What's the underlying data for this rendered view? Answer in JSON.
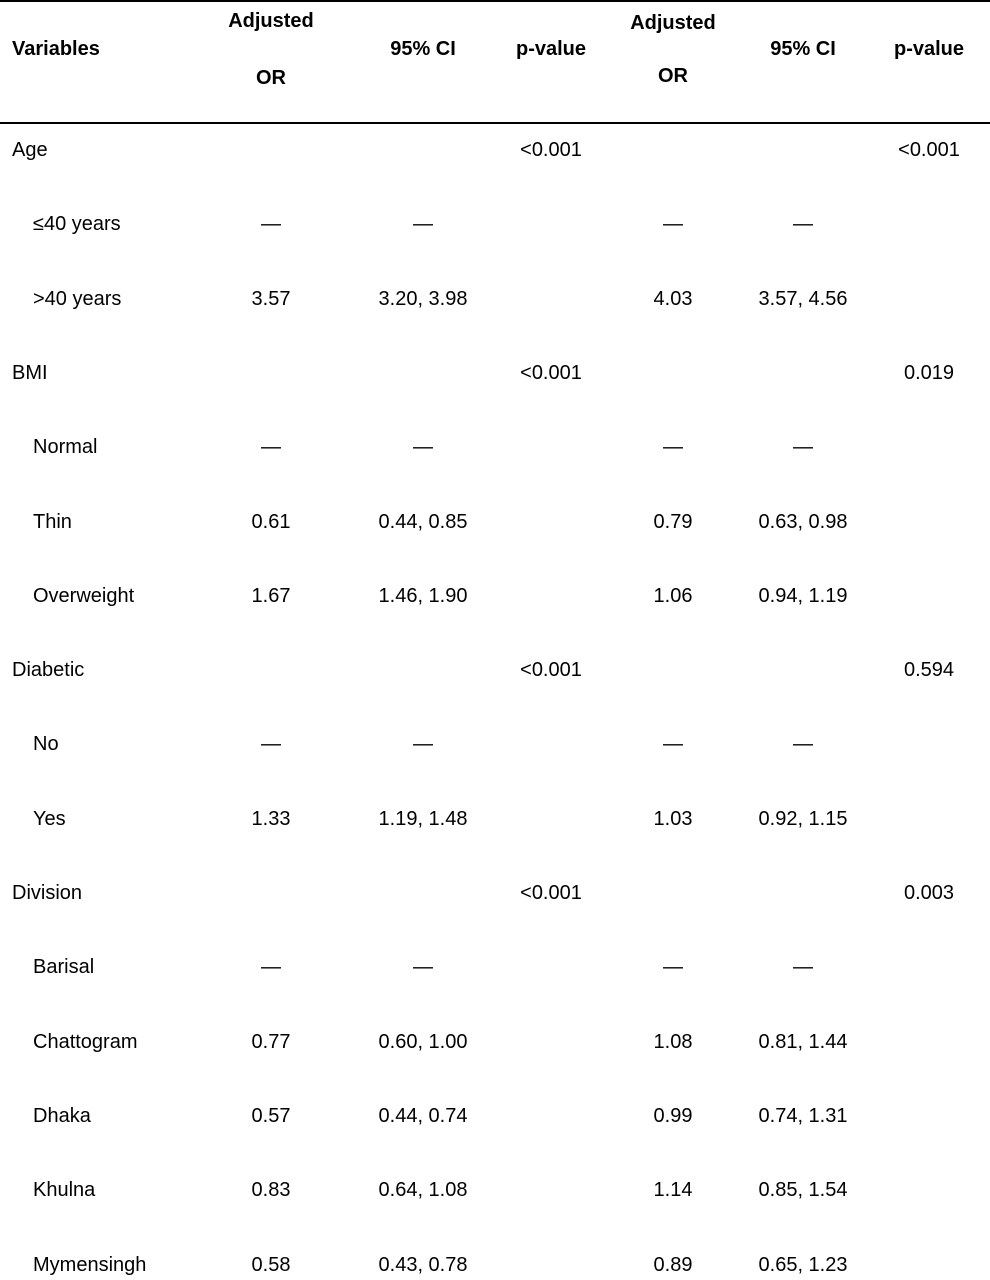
{
  "columns": [
    "Variables",
    "Adjusted OR",
    "95% CI",
    "p-value",
    "Adjusted OR",
    "95% CI",
    "p-value"
  ],
  "header": {
    "variables": "Variables",
    "or1_line1": "Adjusted",
    "or1_line2": "OR",
    "ci1": "95% CI",
    "p1": "p-value",
    "or2_line1": "Adjusted",
    "or2_line2": "OR",
    "ci2": "95% CI",
    "p2": "p-value"
  },
  "rows": [
    {
      "label": "Age",
      "indent": false,
      "or1": "",
      "ci1": "",
      "p1": "<0.001",
      "or2": "",
      "ci2": "",
      "p2": "<0.001"
    },
    {
      "label": "≤40 years",
      "indent": true,
      "or1": "—",
      "ci1": "—",
      "p1": "",
      "or2": "—",
      "ci2": "—",
      "p2": ""
    },
    {
      "label": ">40 years",
      "indent": true,
      "or1": "3.57",
      "ci1": "3.20, 3.98",
      "p1": "",
      "or2": "4.03",
      "ci2": "3.57, 4.56",
      "p2": ""
    },
    {
      "label": "BMI",
      "indent": false,
      "or1": "",
      "ci1": "",
      "p1": "<0.001",
      "or2": "",
      "ci2": "",
      "p2": "0.019"
    },
    {
      "label": "Normal",
      "indent": true,
      "or1": "—",
      "ci1": "—",
      "p1": "",
      "or2": "—",
      "ci2": "—",
      "p2": ""
    },
    {
      "label": "Thin",
      "indent": true,
      "or1": "0.61",
      "ci1": "0.44, 0.85",
      "p1": "",
      "or2": "0.79",
      "ci2": "0.63, 0.98",
      "p2": ""
    },
    {
      "label": "Overweight",
      "indent": true,
      "or1": "1.67",
      "ci1": "1.46, 1.90",
      "p1": "",
      "or2": "1.06",
      "ci2": "0.94, 1.19",
      "p2": ""
    },
    {
      "label": "Diabetic",
      "indent": false,
      "or1": "",
      "ci1": "",
      "p1": "<0.001",
      "or2": "",
      "ci2": "",
      "p2": "0.594"
    },
    {
      "label": "No",
      "indent": true,
      "or1": "—",
      "ci1": "—",
      "p1": "",
      "or2": "—",
      "ci2": "—",
      "p2": ""
    },
    {
      "label": "Yes",
      "indent": true,
      "or1": "1.33",
      "ci1": "1.19, 1.48",
      "p1": "",
      "or2": "1.03",
      "ci2": "0.92, 1.15",
      "p2": ""
    },
    {
      "label": "Division",
      "indent": false,
      "or1": "",
      "ci1": "",
      "p1": "<0.001",
      "or2": "",
      "ci2": "",
      "p2": "0.003"
    },
    {
      "label": "Barisal",
      "indent": true,
      "or1": "—",
      "ci1": "—",
      "p1": "",
      "or2": "—",
      "ci2": "—",
      "p2": ""
    },
    {
      "label": "Chattogram",
      "indent": true,
      "or1": "0.77",
      "ci1": "0.60, 1.00",
      "p1": "",
      "or2": "1.08",
      "ci2": "0.81, 1.44",
      "p2": ""
    },
    {
      "label": "Dhaka",
      "indent": true,
      "or1": "0.57",
      "ci1": "0.44, 0.74",
      "p1": "",
      "or2": "0.99",
      "ci2": "0.74, 1.31",
      "p2": ""
    },
    {
      "label": "Khulna",
      "indent": true,
      "or1": "0.83",
      "ci1": "0.64, 1.08",
      "p1": "",
      "or2": "1.14",
      "ci2": "0.85, 1.54",
      "p2": ""
    },
    {
      "label": "Mymensingh",
      "indent": true,
      "or1": "0.58",
      "ci1": "0.43, 0.78",
      "p1": "",
      "or2": "0.89",
      "ci2": "0.65, 1.23",
      "p2": ""
    }
  ]
}
